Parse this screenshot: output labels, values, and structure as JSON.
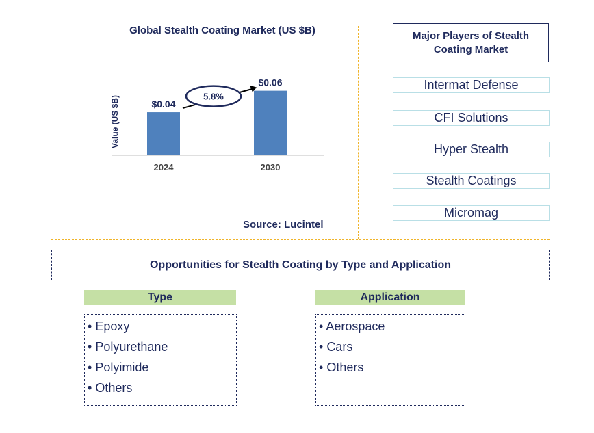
{
  "chart_data": {
    "type": "bar",
    "title": "Global Stealth Coating Market (US $B)",
    "ylabel": "Value (US $B)",
    "xlabel": "",
    "categories": [
      "2024",
      "2030"
    ],
    "values": [
      0.04,
      0.06
    ],
    "data_labels": [
      "$0.04",
      "$0.06"
    ],
    "ylim": [
      0,
      0.075
    ],
    "annotation": {
      "text": "5.8%",
      "meaning": "CAGR 2024-2030"
    },
    "colors": {
      "bar": "#4f81bd",
      "axis": "#bfbfbf",
      "text": "#1f2a5c"
    }
  },
  "source": "Source: Lucintel",
  "players": {
    "title": "Major Players of Stealth Coating Market",
    "items": [
      "Intermat Defense",
      "CFI Solutions",
      "Hyper Stealth",
      "Stealth Coatings",
      "Micromag"
    ]
  },
  "opportunities": {
    "title": "Opportunities for Stealth Coating by Type and Application",
    "type": {
      "heading": "Type",
      "items": [
        "Epoxy",
        "Polyurethane",
        "Polyimide",
        "Others"
      ]
    },
    "application": {
      "heading": "Application",
      "items": [
        "Aerospace",
        "Cars",
        "Others"
      ]
    }
  }
}
